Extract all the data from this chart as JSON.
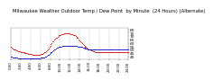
{
  "title": "Milwaukee Weather Outdoor Temp / Dew Point  by Minute  (24 Hours) (Alternate)",
  "title_fontsize": 3.8,
  "background_color": "#ffffff",
  "plot_bg_color": "#ffffff",
  "grid_color": "#aaaaaa",
  "text_color": "#000000",
  "red_color": "#dd0000",
  "blue_color": "#0000cc",
  "ylim": [
    36,
    82
  ],
  "yticks": [
    40,
    45,
    50,
    55,
    60,
    65,
    70,
    75,
    80
  ],
  "red_data": [
    54,
    53,
    52,
    51,
    51,
    50,
    50,
    49,
    49,
    48,
    48,
    48,
    47,
    47,
    46,
    46,
    46,
    45,
    45,
    45,
    45,
    44,
    44,
    44,
    44,
    44,
    43,
    43,
    43,
    43,
    43,
    43,
    43,
    43,
    43,
    43,
    44,
    44,
    44,
    44,
    45,
    46,
    47,
    48,
    49,
    51,
    52,
    54,
    56,
    58,
    60,
    62,
    63,
    65,
    66,
    67,
    68,
    69,
    70,
    71,
    72,
    72,
    73,
    73,
    73,
    74,
    74,
    74,
    74,
    74,
    74,
    74,
    74,
    73,
    73,
    73,
    72,
    72,
    71,
    70,
    69,
    68,
    67,
    65,
    64,
    63,
    61,
    60,
    59,
    57,
    56,
    55,
    54,
    53,
    52,
    51,
    51,
    50,
    49,
    49,
    48,
    48,
    48,
    47,
    47,
    47,
    47,
    47,
    47,
    47,
    47,
    47,
    47,
    47,
    47,
    47,
    47,
    47,
    47,
    47,
    47,
    47,
    47,
    47,
    47,
    47,
    47,
    47,
    47,
    47,
    47,
    47,
    47,
    47,
    47,
    47,
    47,
    47,
    47,
    47,
    47,
    47,
    47,
    47
  ],
  "blue_data": [
    40,
    40,
    39,
    39,
    39,
    38,
    38,
    38,
    38,
    37,
    37,
    37,
    37,
    37,
    37,
    37,
    37,
    37,
    37,
    37,
    37,
    37,
    37,
    37,
    37,
    37,
    37,
    37,
    37,
    37,
    37,
    37,
    37,
    37,
    37,
    37,
    38,
    38,
    38,
    38,
    39,
    39,
    40,
    40,
    41,
    42,
    43,
    44,
    45,
    46,
    47,
    48,
    49,
    50,
    51,
    52,
    53,
    53,
    54,
    54,
    55,
    55,
    55,
    56,
    56,
    56,
    56,
    56,
    56,
    56,
    56,
    56,
    56,
    56,
    56,
    56,
    56,
    56,
    56,
    56,
    56,
    56,
    55,
    55,
    55,
    54,
    54,
    54,
    53,
    53,
    53,
    52,
    52,
    52,
    51,
    51,
    51,
    51,
    51,
    51,
    50,
    50,
    50,
    50,
    50,
    50,
    50,
    50,
    50,
    50,
    50,
    50,
    50,
    50,
    50,
    50,
    50,
    50,
    50,
    50,
    50,
    50,
    50,
    50,
    50,
    50,
    50,
    50,
    50,
    50,
    50,
    50,
    50,
    50,
    50,
    50,
    50,
    50,
    50,
    50,
    50,
    50,
    50,
    50
  ],
  "xtick_positions": [
    0,
    12,
    24,
    36,
    48,
    60,
    72,
    84,
    96,
    108,
    120,
    132,
    143
  ],
  "xtick_labels": [
    "0:00",
    "2:00",
    "4:00",
    "6:00",
    "8:00",
    "10:00",
    "12:00",
    "14:00",
    "16:00",
    "18:00",
    "20:00",
    "22:00",
    "24:00"
  ],
  "xtick_fontsize": 2.8,
  "ytick_fontsize": 3.2
}
